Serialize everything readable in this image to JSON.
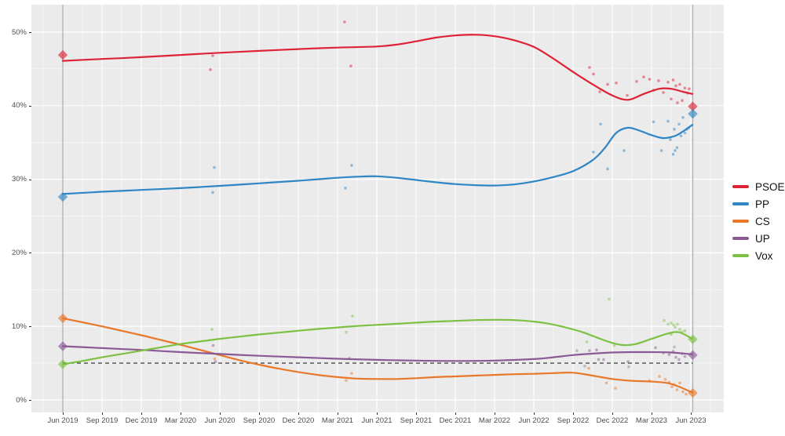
{
  "chart_data": {
    "type": "line",
    "title": "",
    "subtitle": "",
    "legend_position": "right",
    "grid": true,
    "panel_bg": "#ebebeb",
    "x_axis": {
      "tick_labels": [
        "Jun 2019",
        "Sep 2019",
        "Dec 2019",
        "Mar 2020",
        "Jun 2020",
        "Sep 2020",
        "Dec 2020",
        "Mar 2021",
        "Jun 2021",
        "Sep 2021",
        "Dec 2021",
        "Mar 2022",
        "Jun 2022",
        "Sep 2022",
        "Dec 2022",
        "Mar 2023",
        "Jun 2023"
      ],
      "unit": "quarter_index"
    },
    "y_axis": {
      "tick_labels": [
        "0%",
        "10%",
        "20%",
        "30%",
        "40%",
        "50%"
      ],
      "tick_values": [
        0,
        10,
        20,
        30,
        40,
        50
      ],
      "range": [
        -1.7,
        53.7
      ]
    },
    "reference_line": {
      "y": 5,
      "style": "dashed",
      "color": "#4a4a4a"
    },
    "election_vlines": {
      "color": "#b3b3b3",
      "q_positions": [
        0,
        16.05
      ]
    },
    "elections": [
      {
        "label": "Jun 2019",
        "q": 0,
        "values": [
          46.9,
          27.6,
          11.1,
          7.3,
          4.85
        ]
      },
      {
        "label": "Jun 2023",
        "q": 16.05,
        "values": [
          39.9,
          38.9,
          0.95,
          6.1,
          8.25
        ]
      }
    ],
    "series": [
      {
        "name": "PSOE",
        "color": "#de2337",
        "line": [
          [
            0,
            46.1
          ],
          [
            1,
            46.35
          ],
          [
            2,
            46.6
          ],
          [
            3,
            46.9
          ],
          [
            4,
            47.2
          ],
          [
            5,
            47.45
          ],
          [
            6,
            47.7
          ],
          [
            7,
            47.9
          ],
          [
            8,
            48.05
          ],
          [
            8.5,
            48.3
          ],
          [
            9,
            48.75
          ],
          [
            9.5,
            49.25
          ],
          [
            10,
            49.55
          ],
          [
            10.5,
            49.65
          ],
          [
            11,
            49.45
          ],
          [
            11.5,
            48.9
          ],
          [
            12,
            48.0
          ],
          [
            12.5,
            46.4
          ],
          [
            13,
            44.6
          ],
          [
            13.5,
            42.9
          ],
          [
            14,
            41.4
          ],
          [
            14.4,
            40.8
          ],
          [
            14.8,
            41.6
          ],
          [
            15.2,
            42.3
          ],
          [
            15.5,
            42.3
          ],
          [
            15.8,
            41.9
          ],
          [
            16.04,
            41.6
          ]
        ],
        "points": [
          [
            3.82,
            46.8
          ],
          [
            3.76,
            44.9
          ],
          [
            7.18,
            51.4
          ],
          [
            7.34,
            45.4
          ],
          [
            13.42,
            45.2
          ],
          [
            13.52,
            44.3
          ],
          [
            13.88,
            42.9
          ],
          [
            13.68,
            41.9
          ],
          [
            14.1,
            43.1
          ],
          [
            14.38,
            41.4
          ],
          [
            14.62,
            43.3
          ],
          [
            14.8,
            43.9
          ],
          [
            14.95,
            43.6
          ],
          [
            15.05,
            42.1
          ],
          [
            15.18,
            43.4
          ],
          [
            15.3,
            41.8
          ],
          [
            15.42,
            43.2
          ],
          [
            15.5,
            40.9
          ],
          [
            15.55,
            43.5
          ],
          [
            15.62,
            42.7
          ],
          [
            15.66,
            40.4
          ],
          [
            15.72,
            42.9
          ],
          [
            15.78,
            40.7
          ],
          [
            15.85,
            42.4
          ],
          [
            15.92,
            41.7
          ],
          [
            15.96,
            42.3
          ]
        ]
      },
      {
        "name": "PP",
        "color": "#2f86c5",
        "line": [
          [
            0,
            28.0
          ],
          [
            1,
            28.3
          ],
          [
            2,
            28.55
          ],
          [
            3,
            28.8
          ],
          [
            4,
            29.1
          ],
          [
            5,
            29.45
          ],
          [
            6,
            29.8
          ],
          [
            6.5,
            30.0
          ],
          [
            7,
            30.2
          ],
          [
            7.5,
            30.35
          ],
          [
            8,
            30.4
          ],
          [
            8.5,
            30.2
          ],
          [
            9,
            29.9
          ],
          [
            9.5,
            29.6
          ],
          [
            10,
            29.35
          ],
          [
            10.5,
            29.2
          ],
          [
            11,
            29.15
          ],
          [
            11.5,
            29.3
          ],
          [
            12,
            29.7
          ],
          [
            12.5,
            30.3
          ],
          [
            13,
            31.1
          ],
          [
            13.5,
            32.6
          ],
          [
            13.8,
            34.2
          ],
          [
            14.1,
            36.3
          ],
          [
            14.4,
            37.0
          ],
          [
            14.7,
            36.6
          ],
          [
            15,
            36.0
          ],
          [
            15.3,
            35.6
          ],
          [
            15.6,
            35.9
          ],
          [
            15.8,
            36.5
          ],
          [
            16.04,
            37.4
          ]
        ],
        "points": [
          [
            3.86,
            31.6
          ],
          [
            3.82,
            28.2
          ],
          [
            7.36,
            31.9
          ],
          [
            7.2,
            28.8
          ],
          [
            13.52,
            33.7
          ],
          [
            13.7,
            37.5
          ],
          [
            13.88,
            31.4
          ],
          [
            14.3,
            33.9
          ],
          [
            15.05,
            37.8
          ],
          [
            15.25,
            33.9
          ],
          [
            15.42,
            37.9
          ],
          [
            15.48,
            35.4
          ],
          [
            15.55,
            33.4
          ],
          [
            15.58,
            36.8
          ],
          [
            15.6,
            33.9
          ],
          [
            15.65,
            34.3
          ],
          [
            15.7,
            37.5
          ],
          [
            15.75,
            35.9
          ],
          [
            15.8,
            38.4
          ],
          [
            15.85,
            36.3
          ],
          [
            15.9,
            36.8
          ],
          [
            15.95,
            37.0
          ]
        ]
      },
      {
        "name": "CS",
        "color": "#e8782a",
        "line": [
          [
            0,
            11.1
          ],
          [
            0.5,
            10.55
          ],
          [
            1,
            10.0
          ],
          [
            1.5,
            9.4
          ],
          [
            2,
            8.8
          ],
          [
            2.5,
            8.15
          ],
          [
            3,
            7.5
          ],
          [
            3.5,
            6.8
          ],
          [
            4,
            6.1
          ],
          [
            4.5,
            5.4
          ],
          [
            5,
            4.8
          ],
          [
            5.5,
            4.25
          ],
          [
            6,
            3.8
          ],
          [
            6.5,
            3.4
          ],
          [
            7,
            3.1
          ],
          [
            7.5,
            2.9
          ],
          [
            8,
            2.85
          ],
          [
            8.5,
            2.85
          ],
          [
            9,
            2.95
          ],
          [
            9.5,
            3.1
          ],
          [
            10,
            3.2
          ],
          [
            10.5,
            3.3
          ],
          [
            11,
            3.4
          ],
          [
            11.5,
            3.5
          ],
          [
            12,
            3.55
          ],
          [
            12.5,
            3.65
          ],
          [
            13,
            3.7
          ],
          [
            13.5,
            3.3
          ],
          [
            14,
            2.85
          ],
          [
            14.5,
            2.6
          ],
          [
            15,
            2.5
          ],
          [
            15.4,
            2.3
          ],
          [
            15.7,
            1.8
          ],
          [
            16.04,
            1.0
          ]
        ],
        "points": [
          [
            3.87,
            5.6
          ],
          [
            7.36,
            3.6
          ],
          [
            7.22,
            2.65
          ],
          [
            13.4,
            4.3
          ],
          [
            13.85,
            2.3
          ],
          [
            14.08,
            1.6
          ],
          [
            14.95,
            2.6
          ],
          [
            15.2,
            3.2
          ],
          [
            15.35,
            2.8
          ],
          [
            15.45,
            2.4
          ],
          [
            15.52,
            1.8
          ],
          [
            15.58,
            2.1
          ],
          [
            15.65,
            1.4
          ],
          [
            15.72,
            2.3
          ],
          [
            15.8,
            1.1
          ],
          [
            15.88,
            0.8
          ]
        ]
      },
      {
        "name": "UP",
        "color": "#8a5a96",
        "line": [
          [
            0,
            7.3
          ],
          [
            1,
            7.05
          ],
          [
            2,
            6.8
          ],
          [
            3,
            6.5
          ],
          [
            4,
            6.25
          ],
          [
            5,
            6.0
          ],
          [
            6,
            5.8
          ],
          [
            7,
            5.6
          ],
          [
            8,
            5.45
          ],
          [
            9,
            5.35
          ],
          [
            10,
            5.3
          ],
          [
            11,
            5.35
          ],
          [
            12,
            5.55
          ],
          [
            12.5,
            5.8
          ],
          [
            13,
            6.1
          ],
          [
            13.5,
            6.3
          ],
          [
            14,
            6.45
          ],
          [
            14.5,
            6.5
          ],
          [
            15,
            6.5
          ],
          [
            15.5,
            6.45
          ],
          [
            16.04,
            6.2
          ]
        ],
        "points": [
          [
            3.83,
            7.4
          ],
          [
            3.89,
            5.2
          ],
          [
            7.3,
            5.65
          ],
          [
            13.42,
            6.7
          ],
          [
            13.6,
            6.8
          ],
          [
            13.65,
            5.5
          ],
          [
            13.78,
            5.5
          ],
          [
            14.4,
            5.2
          ],
          [
            15.1,
            7.1
          ],
          [
            15.3,
            6.4
          ],
          [
            15.45,
            6.15
          ],
          [
            15.55,
            6.6
          ],
          [
            15.62,
            5.8
          ],
          [
            15.7,
            5.5
          ],
          [
            15.78,
            6.3
          ],
          [
            15.85,
            5.9
          ]
        ]
      },
      {
        "name": "Vox",
        "color": "#7dc142",
        "line": [
          [
            0,
            4.85
          ],
          [
            0.5,
            5.3
          ],
          [
            1,
            5.8
          ],
          [
            1.5,
            6.25
          ],
          [
            2,
            6.7
          ],
          [
            2.5,
            7.15
          ],
          [
            3,
            7.6
          ],
          [
            3.5,
            7.95
          ],
          [
            4,
            8.3
          ],
          [
            4.5,
            8.6
          ],
          [
            5,
            8.9
          ],
          [
            5.5,
            9.15
          ],
          [
            6,
            9.4
          ],
          [
            6.5,
            9.65
          ],
          [
            7,
            9.85
          ],
          [
            7.5,
            10.05
          ],
          [
            8,
            10.2
          ],
          [
            8.5,
            10.35
          ],
          [
            9,
            10.5
          ],
          [
            9.5,
            10.65
          ],
          [
            10,
            10.75
          ],
          [
            10.5,
            10.85
          ],
          [
            11,
            10.9
          ],
          [
            11.5,
            10.85
          ],
          [
            12,
            10.65
          ],
          [
            12.5,
            10.25
          ],
          [
            13,
            9.6
          ],
          [
            13.3,
            9.1
          ],
          [
            13.6,
            8.5
          ],
          [
            14,
            7.75
          ],
          [
            14.3,
            7.45
          ],
          [
            14.6,
            7.6
          ],
          [
            15,
            8.3
          ],
          [
            15.4,
            9.0
          ],
          [
            15.7,
            9.2
          ],
          [
            16.04,
            8.3
          ]
        ],
        "points": [
          [
            3.8,
            9.6
          ],
          [
            7.38,
            11.4
          ],
          [
            7.22,
            9.2
          ],
          [
            13.35,
            7.9
          ],
          [
            13.92,
            13.7
          ],
          [
            14.05,
            7.4
          ],
          [
            15.32,
            10.8
          ],
          [
            15.42,
            10.3
          ],
          [
            15.5,
            10.45
          ],
          [
            15.5,
            8.9
          ],
          [
            15.56,
            10.2
          ],
          [
            15.6,
            9.9
          ],
          [
            15.66,
            10.3
          ],
          [
            15.72,
            9.6
          ],
          [
            15.78,
            9.25
          ],
          [
            15.85,
            9.4
          ]
        ]
      }
    ],
    "other_points": {
      "color": "#9a9a9a",
      "points": [
        [
          13.1,
          6.7
        ],
        [
          13.3,
          4.6
        ],
        [
          14.42,
          4.5
        ],
        [
          15.58,
          7.2
        ]
      ]
    }
  }
}
